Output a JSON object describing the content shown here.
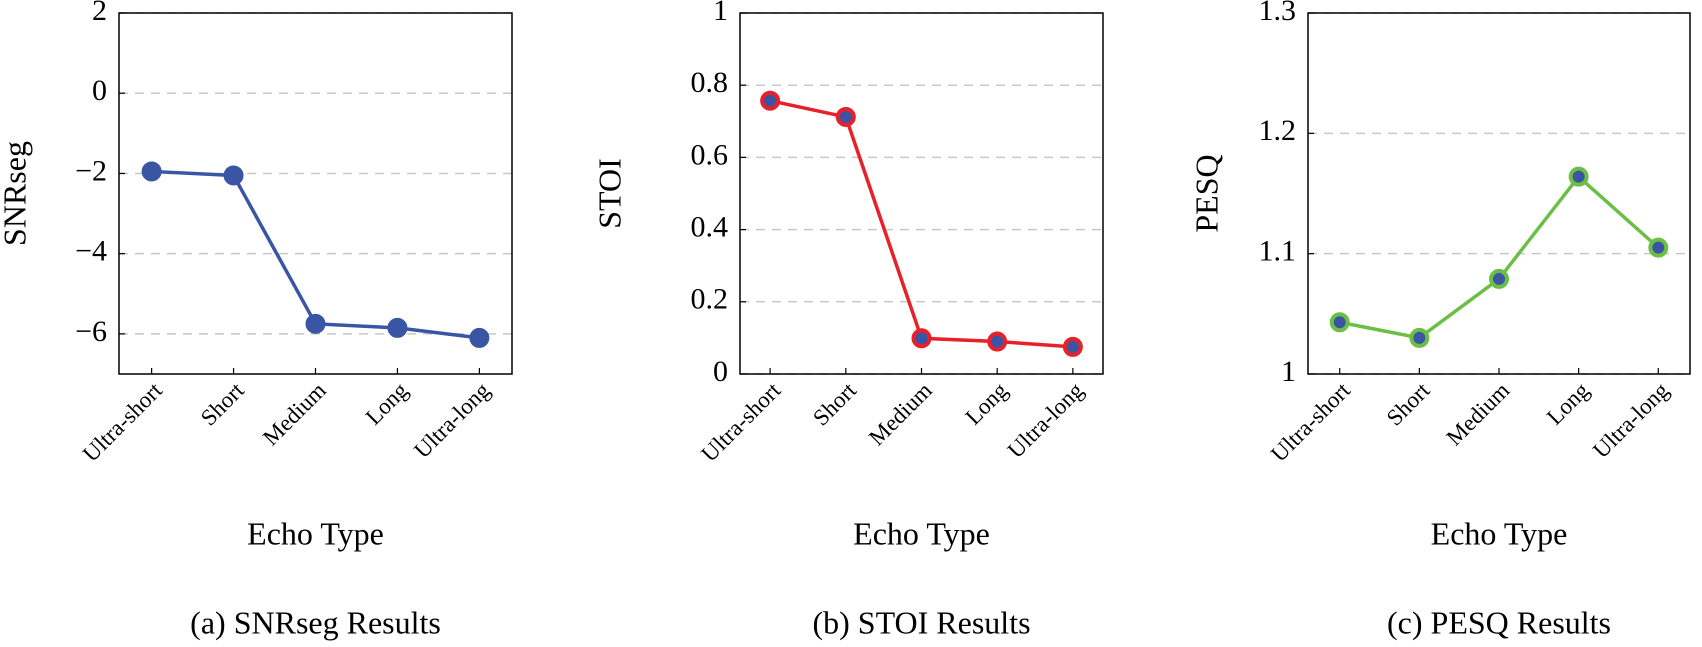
{
  "chart_data": [
    {
      "type": "line",
      "title": "(a) SNRseg Results",
      "xlabel": "Echo Type",
      "ylabel": "SNRseg",
      "categories": [
        "Ultra-short",
        "Short",
        "Medium",
        "Long",
        "Ultra-long"
      ],
      "series": [
        {
          "color": "#3a55a4",
          "marker_fill": "#3a55a4",
          "values": [
            -1.95,
            -2.05,
            -5.75,
            -5.85,
            -6.1
          ]
        }
      ],
      "ylim": [
        -7,
        2
      ],
      "yticks": [
        {
          "value": -6,
          "label": "−6"
        },
        {
          "value": -4,
          "label": "−4"
        },
        {
          "value": -2,
          "label": "−2"
        },
        0,
        2
      ],
      "grid": true
    },
    {
      "type": "line",
      "title": "(b) STOI Results",
      "xlabel": "Echo Type",
      "ylabel": "STOI",
      "categories": [
        "Ultra-short",
        "Short",
        "Medium",
        "Long",
        "Ultra-long"
      ],
      "series": [
        {
          "color": "#e8202a",
          "marker_fill": "#3a55a4",
          "values": [
            0.757,
            0.712,
            0.099,
            0.09,
            0.075
          ]
        }
      ],
      "ylim": [
        0,
        1
      ],
      "yticks": [
        0,
        0.2,
        0.4,
        0.6,
        0.8,
        1
      ],
      "grid": true
    },
    {
      "type": "line",
      "title": "(c) PESQ Results",
      "xlabel": "Echo Type",
      "ylabel": "PESQ",
      "categories": [
        "Ultra-short",
        "Short",
        "Medium",
        "Long",
        "Ultra-long"
      ],
      "series": [
        {
          "color": "#6cbf45",
          "marker_fill": "#3a55a4",
          "values": [
            1.043,
            1.03,
            1.079,
            1.164,
            1.105
          ]
        }
      ],
      "ylim": [
        1,
        1.3
      ],
      "yticks": [
        1,
        1.1,
        1.2,
        1.3
      ],
      "grid": true
    }
  ]
}
